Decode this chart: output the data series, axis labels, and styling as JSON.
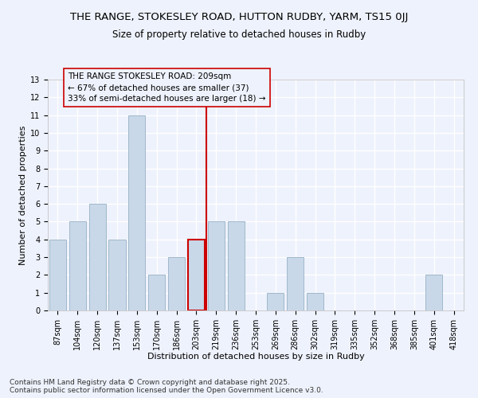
{
  "title": "THE RANGE, STOKESLEY ROAD, HUTTON RUDBY, YARM, TS15 0JJ",
  "subtitle": "Size of property relative to detached houses in Rudby",
  "xlabel": "Distribution of detached houses by size in Rudby",
  "ylabel": "Number of detached properties",
  "categories": [
    "87sqm",
    "104sqm",
    "120sqm",
    "137sqm",
    "153sqm",
    "170sqm",
    "186sqm",
    "203sqm",
    "219sqm",
    "236sqm",
    "253sqm",
    "269sqm",
    "286sqm",
    "302sqm",
    "319sqm",
    "335sqm",
    "352sqm",
    "368sqm",
    "385sqm",
    "401sqm",
    "418sqm"
  ],
  "values": [
    4,
    5,
    6,
    4,
    11,
    2,
    3,
    4,
    5,
    5,
    0,
    1,
    3,
    1,
    0,
    0,
    0,
    0,
    0,
    2,
    0
  ],
  "bar_color": "#c8d8e8",
  "bar_edge_color": "#a0b8cc",
  "highlight_index": 7,
  "highlight_bar_edge_color": "#cc0000",
  "vline_color": "#cc0000",
  "annotation_text": "THE RANGE STOKESLEY ROAD: 209sqm\n← 67% of detached houses are smaller (37)\n33% of semi-detached houses are larger (18) →",
  "annotation_box_edge": "#cc0000",
  "ylim": [
    0,
    13
  ],
  "yticks": [
    0,
    1,
    2,
    3,
    4,
    5,
    6,
    7,
    8,
    9,
    10,
    11,
    12,
    13
  ],
  "background_color": "#eef2fc",
  "grid_color": "#ffffff",
  "footer": "Contains HM Land Registry data © Crown copyright and database right 2025.\nContains public sector information licensed under the Open Government Licence v3.0.",
  "title_fontsize": 9.5,
  "subtitle_fontsize": 8.5,
  "xlabel_fontsize": 8,
  "ylabel_fontsize": 8,
  "tick_fontsize": 7,
  "annotation_fontsize": 7.5,
  "footer_fontsize": 6.5
}
